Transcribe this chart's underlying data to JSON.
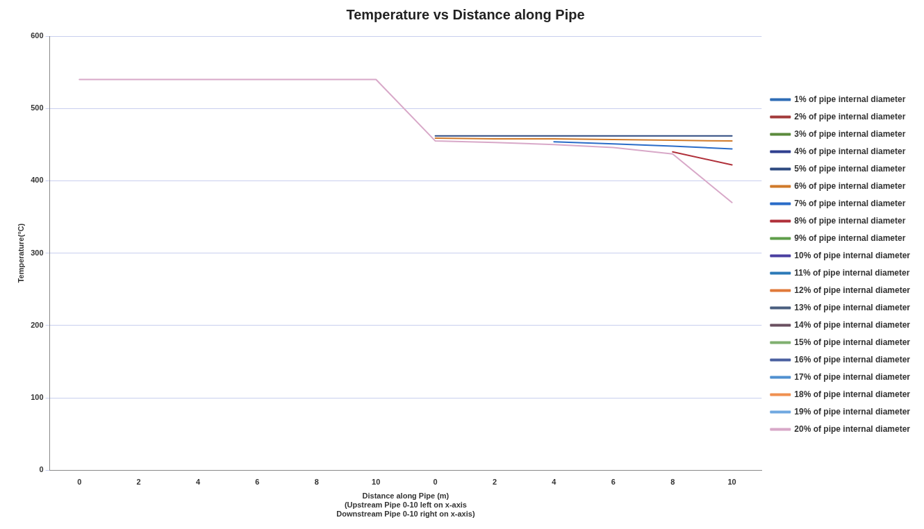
{
  "chart_data": {
    "type": "line",
    "title": "Temperature vs Distance along Pipe",
    "xlabel": "Distance along Pipe (m)\n(Upstream Pipe 0-10 left on x-axis\nDownstream Pipe 0-10 right on x-axis)",
    "ylabel": "Temperature(°C)",
    "categories": [
      "0",
      "2",
      "4",
      "6",
      "8",
      "10",
      "0",
      "2",
      "4",
      "6",
      "8",
      "10"
    ],
    "ylim": [
      0,
      600
    ],
    "yticks": [
      0,
      100,
      200,
      300,
      400,
      500,
      600
    ],
    "grid": "y",
    "legend": "right",
    "marker": "none",
    "line_style": "solid",
    "series": [
      {
        "name": "1% of pipe internal diameter",
        "color": "#2f6db5",
        "values": [
          null,
          null,
          null,
          null,
          null,
          null,
          null,
          null,
          null,
          null,
          null,
          null
        ]
      },
      {
        "name": "2% of pipe internal diameter",
        "color": "#a23a3a",
        "values": [
          null,
          null,
          null,
          null,
          null,
          null,
          null,
          null,
          null,
          null,
          null,
          null
        ]
      },
      {
        "name": "3% of pipe internal diameter",
        "color": "#5b8a3c",
        "values": [
          null,
          null,
          null,
          null,
          null,
          null,
          null,
          null,
          null,
          null,
          null,
          null
        ]
      },
      {
        "name": "4% of pipe internal diameter",
        "color": "#2f3f8f",
        "values": [
          null,
          null,
          null,
          null,
          null,
          null,
          null,
          null,
          null,
          null,
          null,
          null
        ]
      },
      {
        "name": "5% of pipe internal diameter",
        "color": "#2e4a80",
        "values": [
          null,
          null,
          null,
          null,
          null,
          null,
          462,
          462,
          462,
          462,
          462,
          462
        ]
      },
      {
        "name": "6% of pipe internal diameter",
        "color": "#d07a2a",
        "values": [
          null,
          null,
          null,
          null,
          null,
          null,
          459,
          458,
          458,
          457,
          456,
          455
        ]
      },
      {
        "name": "7% of pipe internal diameter",
        "color": "#2a6cc8",
        "values": [
          null,
          null,
          null,
          null,
          null,
          null,
          null,
          null,
          454,
          451,
          448,
          444
        ]
      },
      {
        "name": "8% of pipe internal diameter",
        "color": "#b0303a",
        "values": [
          null,
          null,
          null,
          null,
          null,
          null,
          null,
          null,
          null,
          null,
          440,
          422
        ]
      },
      {
        "name": "9% of pipe internal diameter",
        "color": "#5f9e4a",
        "values": [
          null,
          null,
          null,
          null,
          null,
          null,
          null,
          null,
          null,
          null,
          null,
          null
        ]
      },
      {
        "name": "10% of pipe internal diameter",
        "color": "#4a3fa0",
        "values": [
          null,
          null,
          null,
          null,
          null,
          null,
          null,
          null,
          null,
          null,
          null,
          null
        ]
      },
      {
        "name": "11% of pipe internal diameter",
        "color": "#2c7ab8",
        "values": [
          null,
          null,
          null,
          null,
          null,
          null,
          null,
          null,
          null,
          null,
          null,
          null
        ]
      },
      {
        "name": "12% of pipe internal diameter",
        "color": "#e07a3a",
        "values": [
          null,
          null,
          null,
          null,
          null,
          null,
          null,
          null,
          null,
          null,
          null,
          null
        ]
      },
      {
        "name": "13% of pipe internal diameter",
        "color": "#4a5f7f",
        "values": [
          null,
          null,
          null,
          null,
          null,
          null,
          null,
          null,
          null,
          null,
          null,
          null
        ]
      },
      {
        "name": "14% of pipe internal diameter",
        "color": "#6a5060",
        "values": [
          null,
          null,
          null,
          null,
          null,
          null,
          null,
          null,
          null,
          null,
          null,
          null
        ]
      },
      {
        "name": "15% of pipe internal diameter",
        "color": "#80b070",
        "values": [
          null,
          null,
          null,
          null,
          null,
          null,
          null,
          null,
          null,
          null,
          null,
          null
        ]
      },
      {
        "name": "16% of pipe internal diameter",
        "color": "#4a60a0",
        "values": [
          null,
          null,
          null,
          null,
          null,
          null,
          null,
          null,
          null,
          null,
          null,
          null
        ]
      },
      {
        "name": "17% of pipe internal diameter",
        "color": "#5090d0",
        "values": [
          null,
          null,
          null,
          null,
          null,
          null,
          null,
          null,
          null,
          null,
          null,
          null
        ]
      },
      {
        "name": "18% of pipe internal diameter",
        "color": "#f09050",
        "values": [
          null,
          null,
          null,
          null,
          null,
          null,
          null,
          null,
          null,
          null,
          null,
          null
        ]
      },
      {
        "name": "19% of pipe internal diameter",
        "color": "#70a8e0",
        "values": [
          null,
          null,
          null,
          null,
          null,
          null,
          null,
          null,
          null,
          null,
          null,
          null
        ]
      },
      {
        "name": "20% of pipe internal diameter",
        "color": "#d8a8c8",
        "values": [
          540,
          540,
          540,
          540,
          540,
          540,
          455,
          453,
          450,
          446,
          437,
          370
        ]
      }
    ]
  }
}
